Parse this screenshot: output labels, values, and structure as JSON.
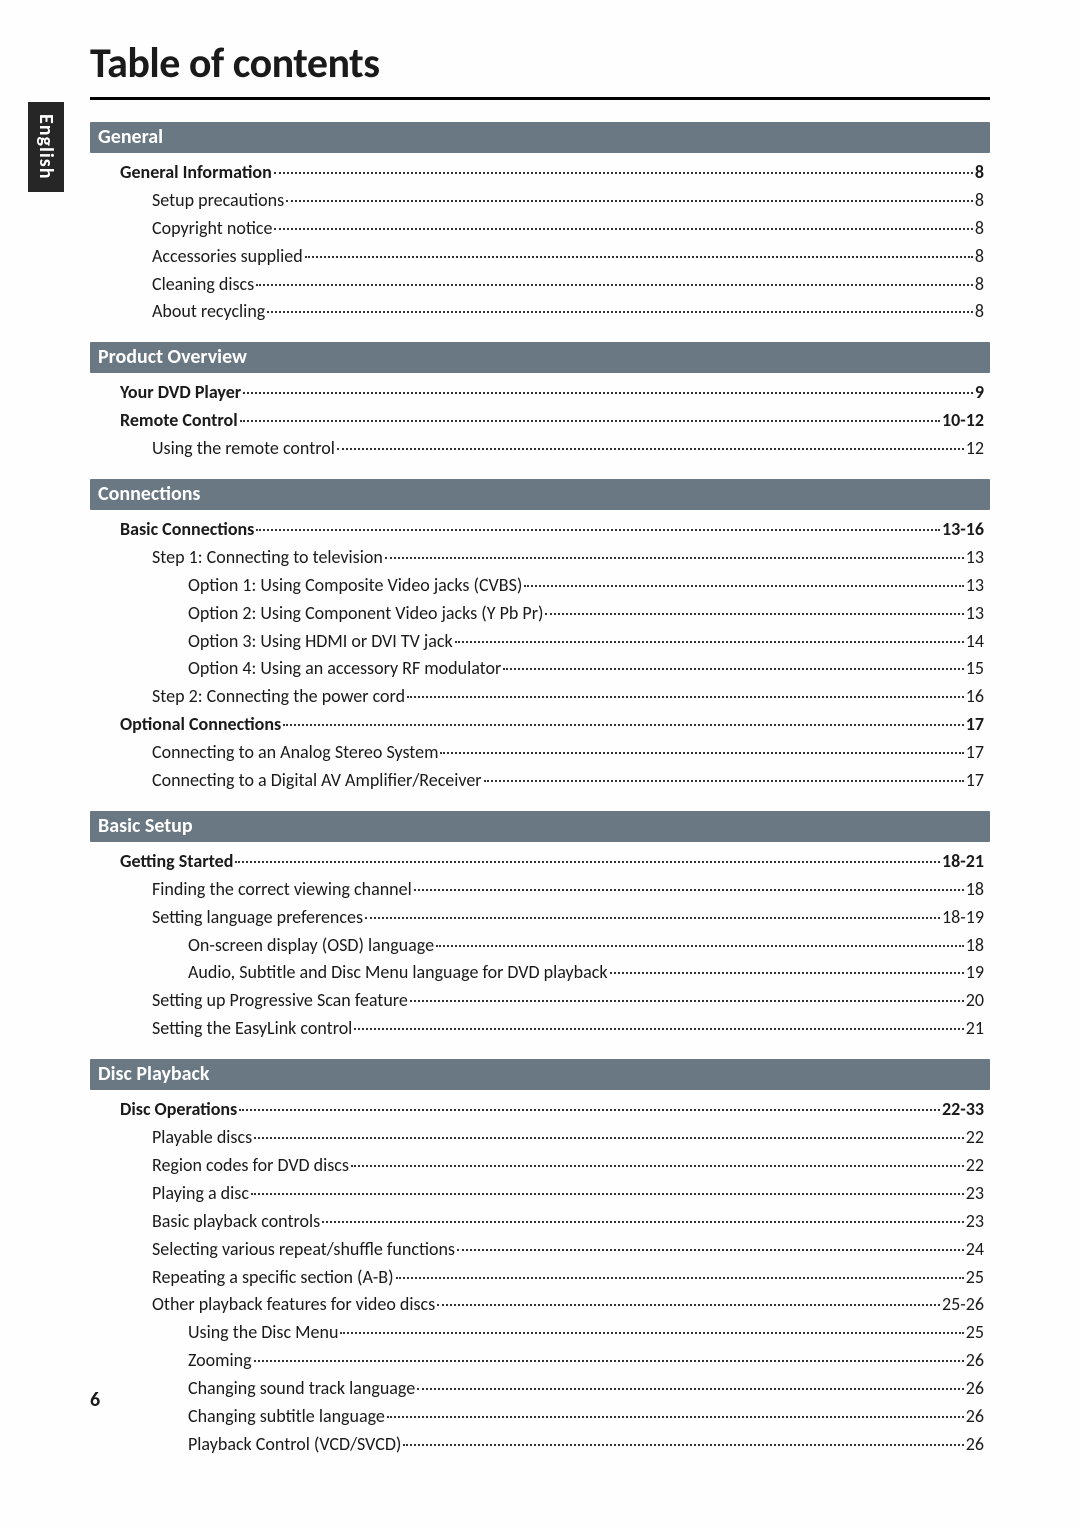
{
  "page_title": "Table of contents",
  "language_tab": "English",
  "page_number": "6",
  "colors": {
    "section_bar_bg": "#6a7884",
    "section_bar_fg": "#ffffff",
    "lang_tab_bg": "#262626",
    "lang_tab_fg": "#ffffff",
    "text": "#1a1a1a",
    "rule": "#000000",
    "dots": "#333333",
    "background": "#fefefe"
  },
  "typography": {
    "title_size_pt": 32,
    "section_bar_size_pt": 15,
    "row_size_pt": 13,
    "font_family": "Gill Sans"
  },
  "sections": [
    {
      "header": "General",
      "rows": [
        {
          "indent": 0,
          "label": "General Information",
          "page": "8"
        },
        {
          "indent": 1,
          "label": "Setup precautions",
          "page": "8"
        },
        {
          "indent": 1,
          "label": "Copyright notice",
          "page": "8"
        },
        {
          "indent": 1,
          "label": "Accessories supplied",
          "page": "8"
        },
        {
          "indent": 1,
          "label": "Cleaning discs",
          "page": "8"
        },
        {
          "indent": 1,
          "label": "About recycling",
          "page": "8"
        }
      ]
    },
    {
      "header": "Product Overview",
      "rows": [
        {
          "indent": 0,
          "label": "Your DVD Player",
          "page": "9"
        },
        {
          "indent": 0,
          "label": "Remote Control",
          "page": "10-12"
        },
        {
          "indent": 1,
          "label": "Using the remote control",
          "page": "12"
        }
      ]
    },
    {
      "header": "Connections",
      "rows": [
        {
          "indent": 0,
          "label": "Basic Connections",
          "page": "13-16"
        },
        {
          "indent": 1,
          "label": "Step 1: Connecting to television",
          "page": "13"
        },
        {
          "indent": 2,
          "label": "Option 1: Using Composite Video jacks (CVBS)",
          "page": "13"
        },
        {
          "indent": 2,
          "label": "Option 2: Using Component Video jacks (Y Pb Pr)",
          "page": "13"
        },
        {
          "indent": 2,
          "label": "Option 3: Using HDMI or DVI TV jack",
          "page": "14"
        },
        {
          "indent": 2,
          "label": "Option 4: Using an accessory RF modulator",
          "page": "15"
        },
        {
          "indent": 1,
          "label": "Step 2: Connecting the power cord",
          "page": "16"
        },
        {
          "indent": 0,
          "label": "Optional Connections",
          "page": "17"
        },
        {
          "indent": 1,
          "label": "Connecting to an Analog Stereo System",
          "page": "17"
        },
        {
          "indent": 1,
          "label": "Connecting to a Digital AV Amplifier/Receiver",
          "page": "17"
        }
      ]
    },
    {
      "header": "Basic Setup",
      "rows": [
        {
          "indent": 0,
          "label": "Getting Started",
          "page": "18-21"
        },
        {
          "indent": 1,
          "label": "Finding the correct viewing channel",
          "page": "18"
        },
        {
          "indent": 1,
          "label": "Setting language preferences",
          "page": "18-19"
        },
        {
          "indent": 2,
          "label": "On-screen display (OSD) language",
          "page": "18"
        },
        {
          "indent": 2,
          "label": "Audio, Subtitle and Disc Menu language for DVD playback",
          "page": "19"
        },
        {
          "indent": 1,
          "label": "Setting up Progressive Scan feature",
          "page": "20"
        },
        {
          "indent": 1,
          "label": "Setting the EasyLink control",
          "page": "21"
        }
      ]
    },
    {
      "header": "Disc Playback",
      "rows": [
        {
          "indent": 0,
          "label": "Disc Operations",
          "page": "22-33"
        },
        {
          "indent": 1,
          "label": "Playable discs",
          "page": "22"
        },
        {
          "indent": 1,
          "label": "Region codes for DVD discs",
          "page": "22"
        },
        {
          "indent": 1,
          "label": "Playing a disc",
          "page": "23"
        },
        {
          "indent": 1,
          "label": "Basic playback controls",
          "page": "23"
        },
        {
          "indent": 1,
          "label": "Selecting various repeat/shuffle functions",
          "page": "24"
        },
        {
          "indent": 1,
          "label": "Repeating a specific section (A-B)",
          "page": "25"
        },
        {
          "indent": 1,
          "label": "Other playback features for video discs",
          "page": "25-26"
        },
        {
          "indent": 2,
          "label": "Using the Disc Menu",
          "page": "25"
        },
        {
          "indent": 2,
          "label": "Zooming",
          "page": "26"
        },
        {
          "indent": 2,
          "label": "Changing sound track language",
          "page": "26"
        },
        {
          "indent": 2,
          "label": "Changing subtitle language",
          "page": "26"
        },
        {
          "indent": 2,
          "label": "Playback Control (VCD/SVCD)",
          "page": "26"
        }
      ]
    }
  ]
}
